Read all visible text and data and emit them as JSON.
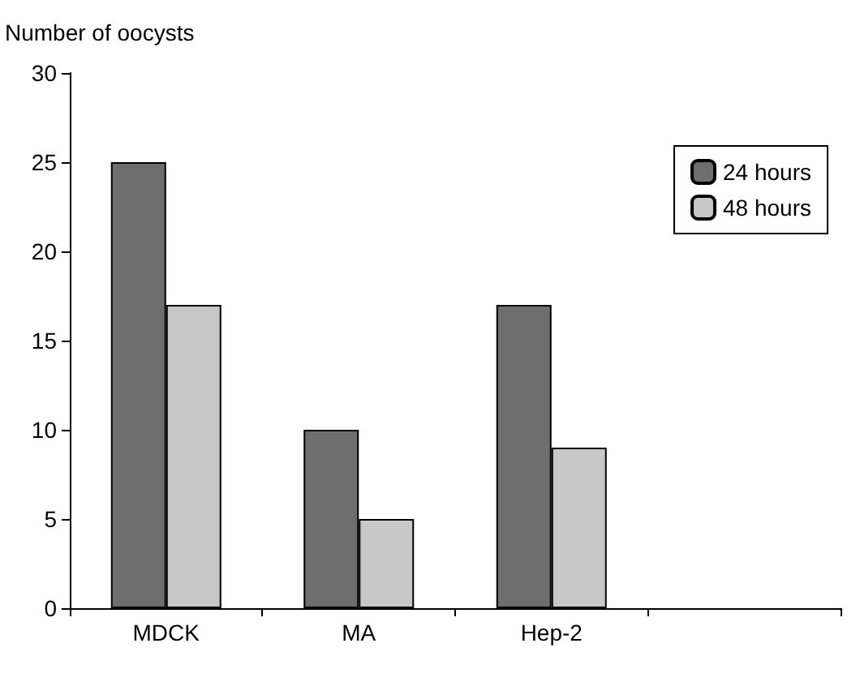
{
  "chart_data": {
    "type": "bar",
    "ylabel": "Number of oocysts",
    "categories": [
      "MDCK",
      "MA",
      "Hep-2",
      null
    ],
    "series": [
      {
        "name": "24 hours",
        "color": "#6e6e6e",
        "values": [
          25,
          10,
          17,
          null
        ]
      },
      {
        "name": "48 hours",
        "color": "#c8c8c8",
        "values": [
          17,
          5,
          9,
          null
        ]
      }
    ],
    "ylim": [
      0,
      30
    ],
    "yticks": [
      0,
      5,
      10,
      15,
      20,
      25,
      30
    ],
    "grid": false,
    "legend": "top right"
  }
}
